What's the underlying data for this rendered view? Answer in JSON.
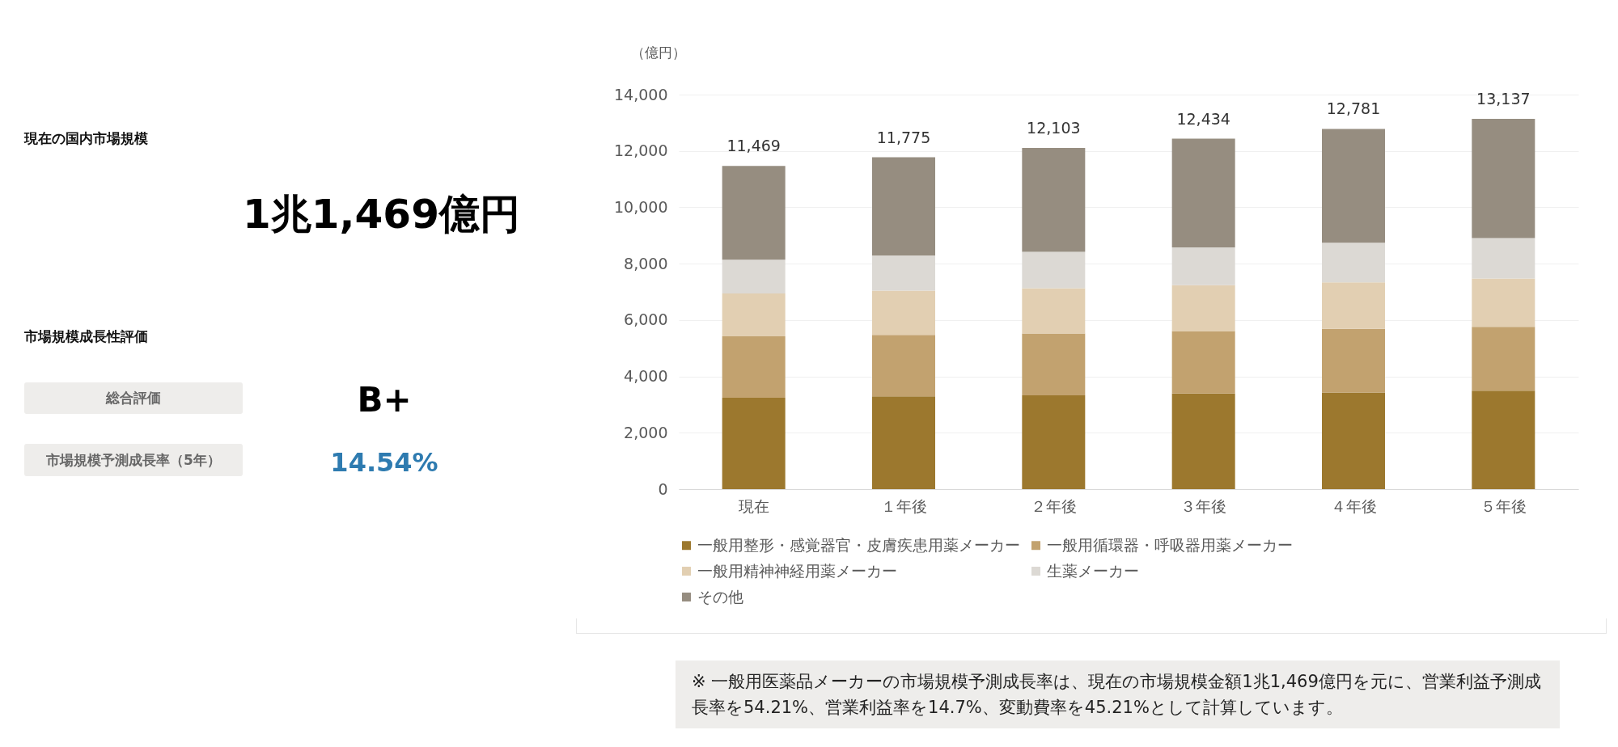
{
  "chart_data": [
    {
      "type": "other",
      "annotations": [
        "現在の国内市場規模",
        "1兆1,469億円",
        "市場規模成長性評価",
        "総合評価",
        "B+",
        "市場規模予測成長率（5年）",
        "14.54%"
      ]
    },
    {
      "type": "bar",
      "stacked": true,
      "ylabel": "（億円）",
      "categories": [
        "現在",
        "１年後",
        "２年後",
        "３年後",
        "４年後",
        "５年後"
      ],
      "series": [
        {
          "name": "一般用整形・感覚器官・皮膚疾患用薬メーカー",
          "color": "#9c782e",
          "values": [
            3240,
            3290,
            3330,
            3390,
            3430,
            3490
          ]
        },
        {
          "name": "一般用循環器・呼吸器用薬メーカー",
          "color": "#c2a26f",
          "values": [
            2180,
            2180,
            2190,
            2220,
            2260,
            2270
          ]
        },
        {
          "name": "一般用精神神経用薬メーカー",
          "color": "#e2cfb2",
          "values": [
            1520,
            1570,
            1610,
            1630,
            1650,
            1710
          ]
        },
        {
          "name": "生薬メーカー",
          "color": "#dcd9d4",
          "values": [
            1200,
            1250,
            1290,
            1340,
            1400,
            1440
          ]
        },
        {
          "name": "その他",
          "color": "#968d80",
          "values": [
            3329,
            3485,
            3683,
            3854,
            4041,
            4227
          ]
        }
      ],
      "totals": [
        "11,469",
        "11,775",
        "12,103",
        "12,434",
        "12,781",
        "13,137"
      ],
      "ylim": [
        0,
        14000
      ],
      "yticks": [
        0,
        {
          "value": 2000,
          "label": "2,000"
        },
        {
          "value": 4000,
          "label": "4,000"
        },
        {
          "value": 6000,
          "label": "6,000"
        },
        {
          "value": 8000,
          "label": "8,000"
        },
        {
          "value": 10000,
          "label": "10,000"
        },
        {
          "value": 12000,
          "label": "12,000"
        },
        {
          "value": 14000,
          "label": "14,000"
        }
      ],
      "grid": "y",
      "legend": "bottom",
      "annotations": [
        "※ 一般用医薬品メーカーの市場規模予測成長率は、現在の市場規模金額1兆1,469億円を元に、営業利益予測成長率を54.21%、営業利益率を14.7%、変動費率を45.21%として計算しています。"
      ]
    }
  ]
}
